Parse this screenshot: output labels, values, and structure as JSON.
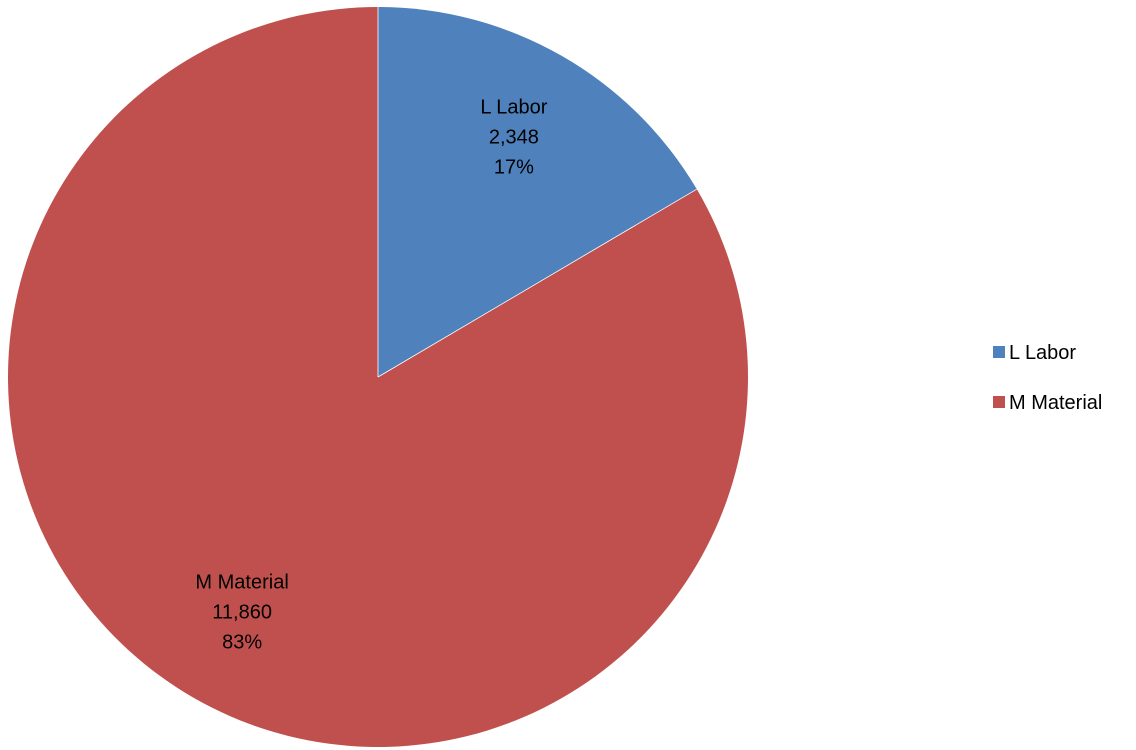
{
  "chart_data": {
    "type": "pie",
    "title": "",
    "legend_position": "right",
    "slices": [
      {
        "label": "L Labor",
        "value": 2348,
        "value_label": "2,348",
        "percent_label": "17%",
        "color": "#4F81BD"
      },
      {
        "label": "M Material",
        "value": 11860,
        "value_label": "11,860",
        "percent_label": "83%",
        "color": "#C0504D"
      }
    ]
  }
}
